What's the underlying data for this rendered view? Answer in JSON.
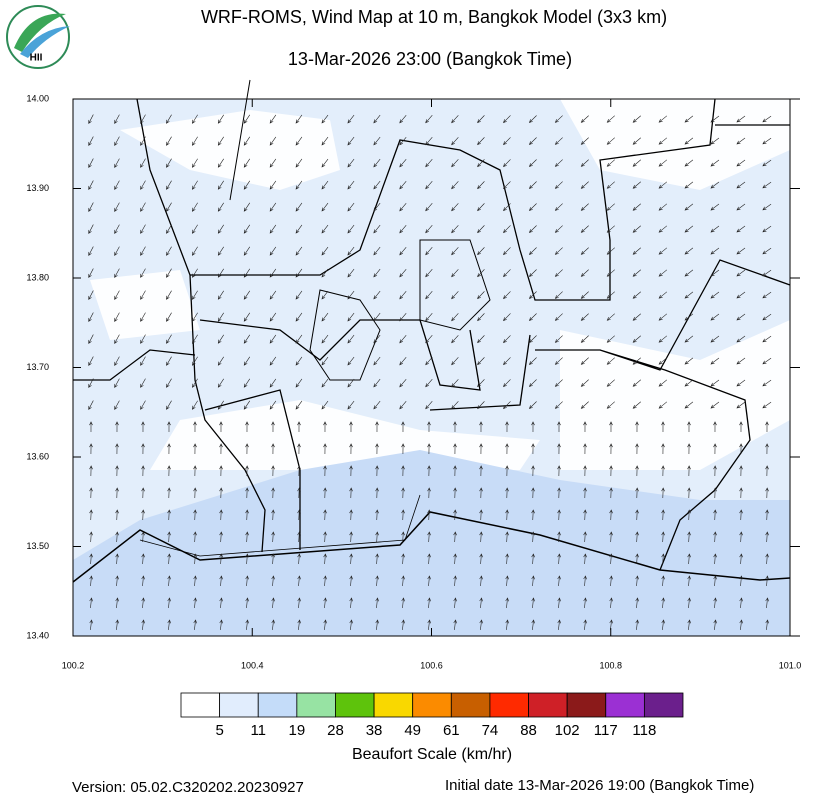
{
  "logo": {
    "text": "HII"
  },
  "chart_data": {
    "type": "map",
    "title": "WRF-ROMS, Wind Map at 10 m, Bangkok Model (3x3 km)",
    "subtitle": "13-Mar-2026 23:00 (Bangkok Time)",
    "xlim": [
      100.2,
      101.0
    ],
    "xticks": [
      100.2,
      100.4,
      100.6,
      100.8,
      {
        "value": 101,
        "label": "101.0"
      }
    ],
    "ylim": [
      13.4,
      14.0
    ],
    "yticks": [
      {
        "value": 13.4,
        "label": "13.40"
      },
      {
        "value": 13.5,
        "label": "13.50"
      },
      {
        "value": 13.6,
        "label": "13.60"
      },
      {
        "value": 13.7,
        "label": "13.70"
      },
      {
        "value": 13.8,
        "label": "13.80"
      },
      {
        "value": 13.9,
        "label": "13.90"
      },
      {
        "value": 14.0,
        "label": "14.00"
      }
    ],
    "colorbar": {
      "title": "Beaufort Scale (km/hr)",
      "levels": [
        5,
        11,
        19,
        28,
        38,
        49,
        61,
        74,
        88,
        102,
        117,
        118
      ],
      "colors": [
        "#ffffff",
        "#e1edfd",
        "#c4dcf9",
        "#97e3a3",
        "#5ec30c",
        "#f9d800",
        "#fb8b00",
        "#c85f00",
        "#ff2a00",
        "#cf2027",
        "#8b1a1a",
        "#9b30d3",
        "#6b1f8c"
      ]
    }
  },
  "footer": {
    "version": "Version: 05.02.C320202.20230927",
    "initial_date": "Initial date 13-Mar-2026 19:00 (Bangkok Time)"
  }
}
